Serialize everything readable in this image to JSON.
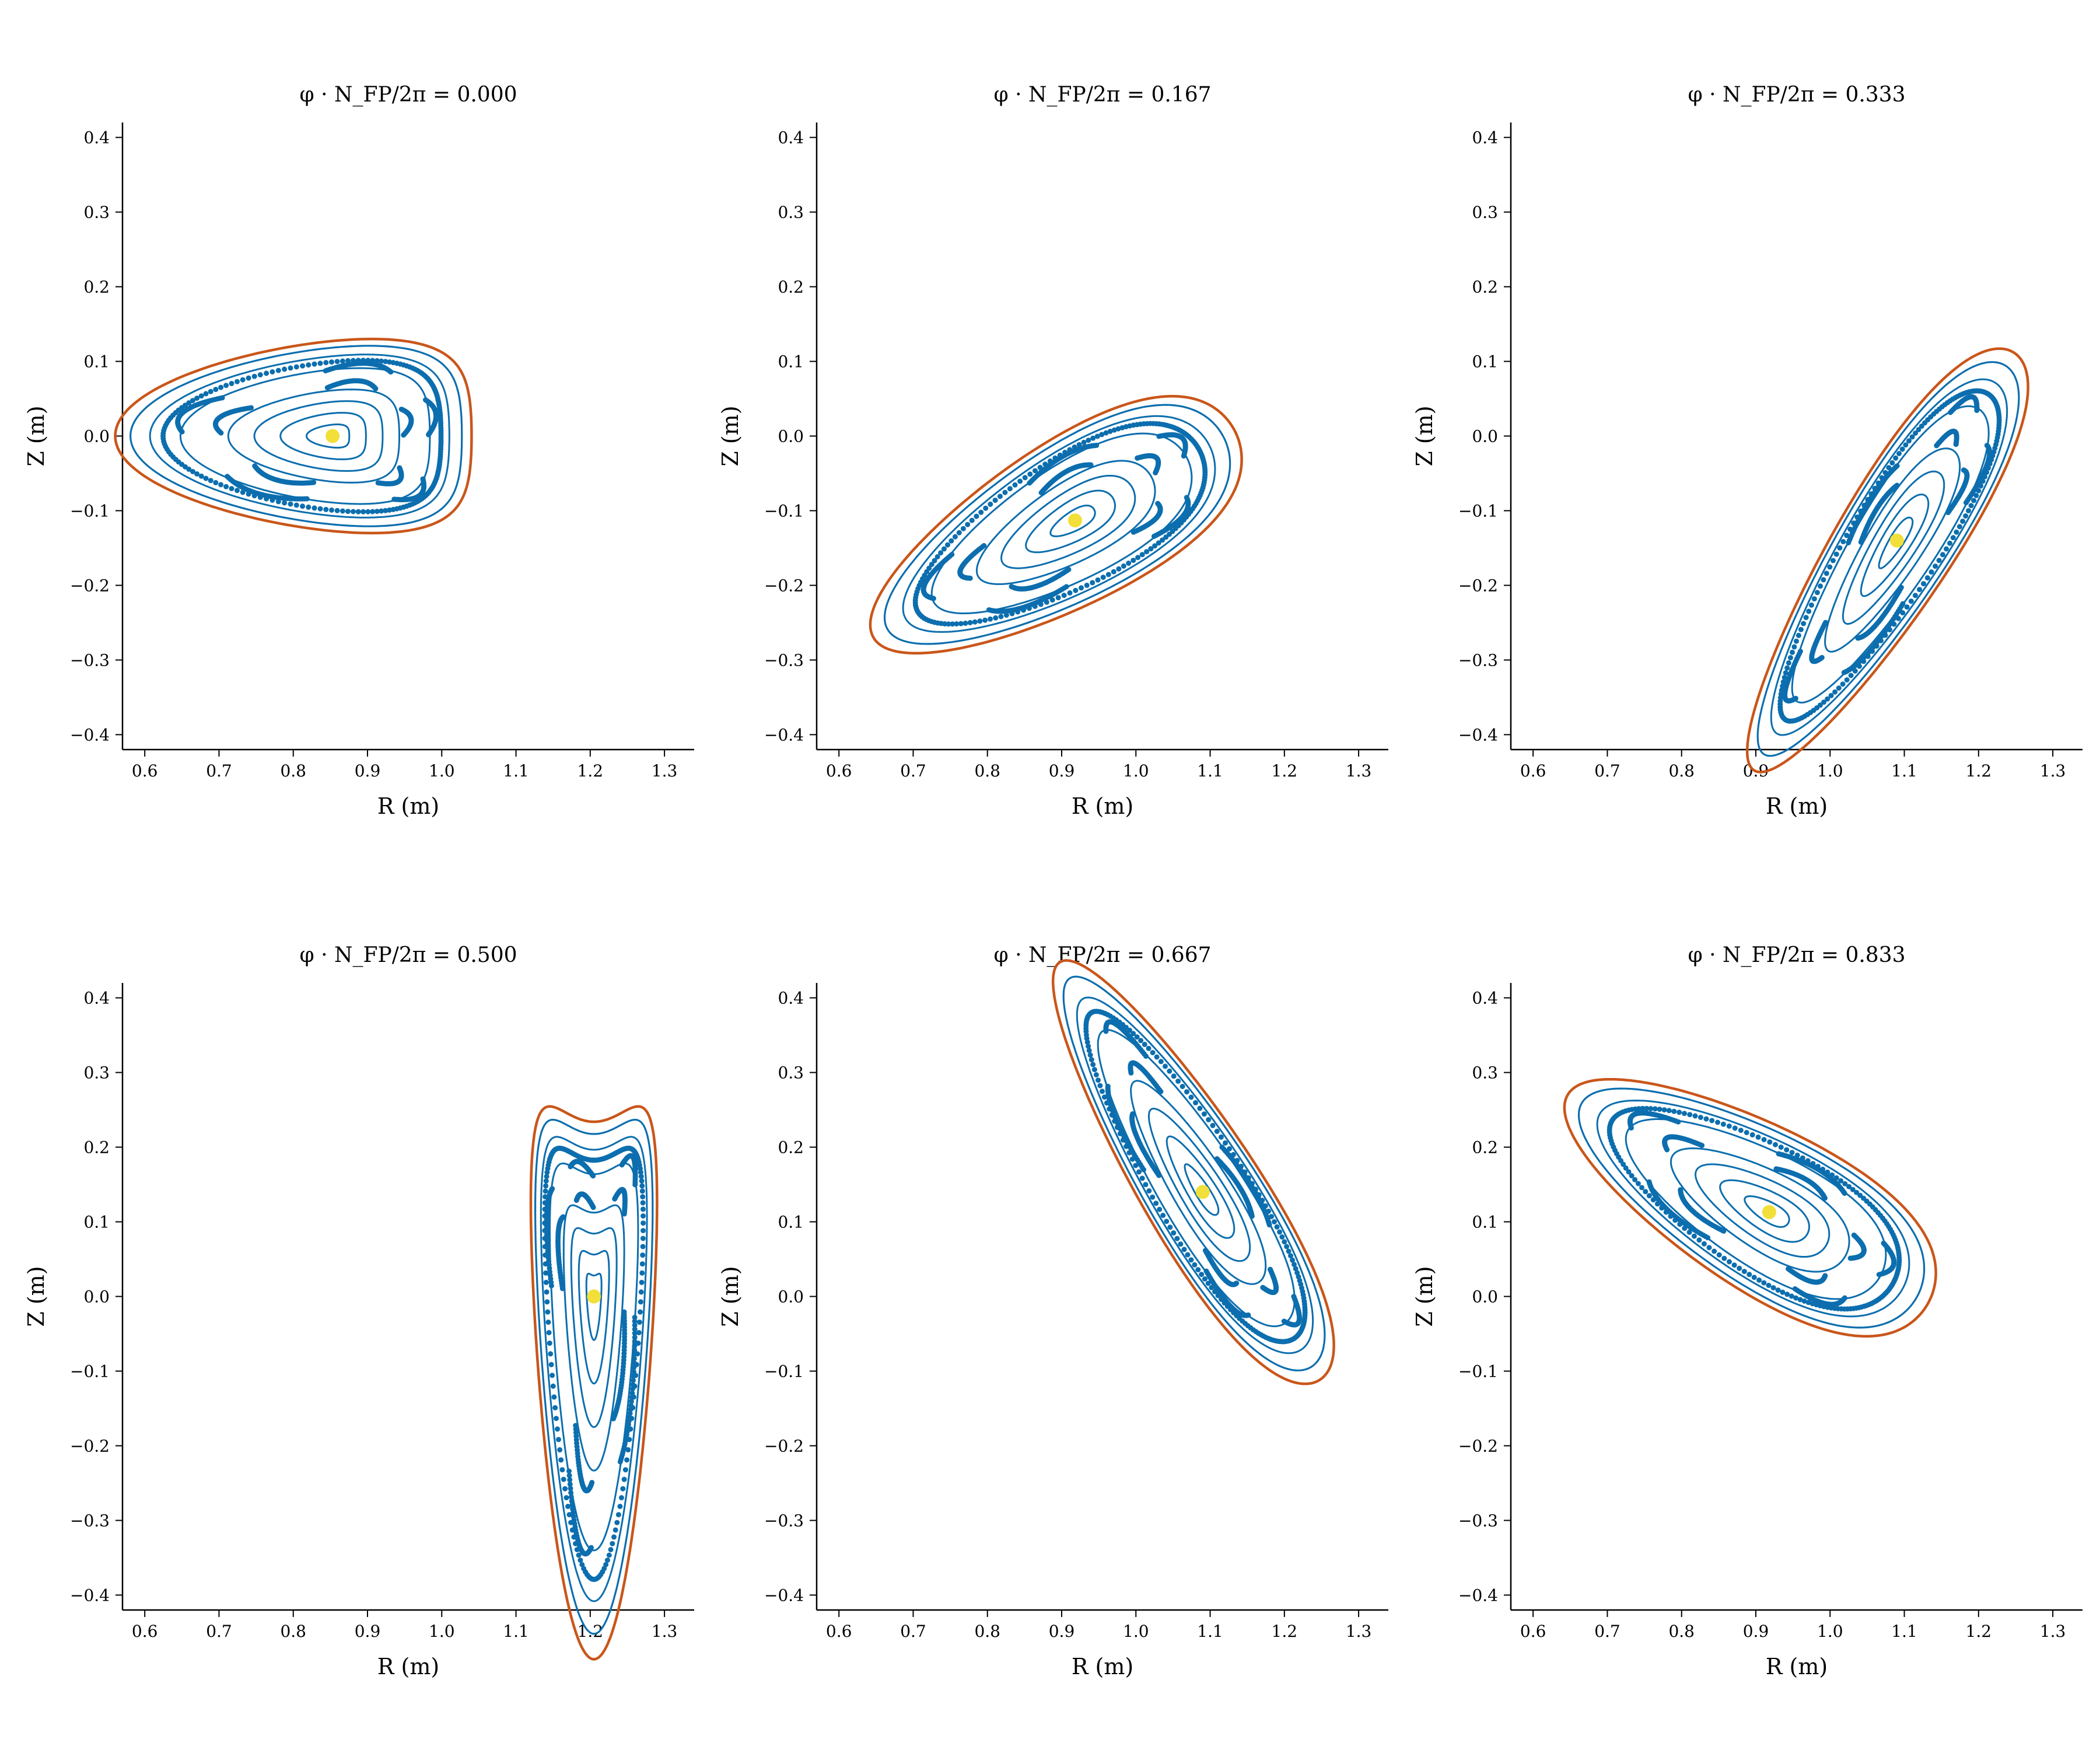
{
  "colors": {
    "boundary": "#c9561a",
    "surface": "#0c6eae",
    "axis": "#f2df3a"
  },
  "chart_data": [
    {
      "type": "line",
      "title": "φ · N_FP/2π = 0.000",
      "xlabel": "R (m)",
      "ylabel": "Z (m)",
      "xlim": [
        0.57,
        1.34
      ],
      "ylim": [
        -0.42,
        0.42
      ],
      "xticks": [
        "0.6",
        "0.7",
        "0.8",
        "0.9",
        "1.0",
        "1.1",
        "1.2",
        "1.3"
      ],
      "yticks": [
        "−0.4",
        "−0.3",
        "−0.2",
        "−0.1",
        "0.0",
        "0.1",
        "0.2",
        "0.3",
        "0.4"
      ],
      "axis": [
        0.853,
        0.0
      ],
      "boundary": {
        "a": 0.24,
        "b": 0.13,
        "tilt": 0,
        "tri": 0.22
      },
      "island_count": 5,
      "island_ri": 0.6
    },
    {
      "type": "line",
      "title": "φ · N_FP/2π = 0.167",
      "xlabel": "R (m)",
      "ylabel": "Z (m)",
      "xlim": [
        0.57,
        1.34
      ],
      "ylim": [
        -0.42,
        0.42
      ],
      "xticks": [
        "0.6",
        "0.7",
        "0.8",
        "0.9",
        "1.0",
        "1.1",
        "1.2",
        "1.3"
      ],
      "yticks": [
        "−0.4",
        "−0.3",
        "−0.2",
        "−0.1",
        "0.0",
        "0.1",
        "0.2",
        "0.3",
        "0.4"
      ],
      "axis": [
        0.918,
        -0.113
      ],
      "boundary": {
        "a": 0.28,
        "b": 0.11,
        "tilt": 30,
        "tri": 0.12
      },
      "island_count": 5,
      "island_ri": 0.6
    },
    {
      "type": "line",
      "title": "φ · N_FP/2π = 0.333",
      "xlabel": "R (m)",
      "ylabel": "Z (m)",
      "xlim": [
        0.57,
        1.34
      ],
      "ylim": [
        -0.42,
        0.42
      ],
      "xticks": [
        "0.6",
        "0.7",
        "0.8",
        "0.9",
        "1.0",
        "1.1",
        "1.2",
        "1.3"
      ],
      "yticks": [
        "−0.4",
        "−0.3",
        "−0.2",
        "−0.1",
        "0.0",
        "0.1",
        "0.2",
        "0.3",
        "0.4"
      ],
      "axis": [
        1.09,
        -0.14
      ],
      "boundary": {
        "a": 0.33,
        "b": 0.08,
        "tilt": 58,
        "tri": 0.1
      },
      "island_count": 5,
      "island_ri": 0.6
    },
    {
      "type": "line",
      "title": "φ · N_FP/2π = 0.500",
      "xlabel": "R (m)",
      "ylabel": "Z (m)",
      "xlim": [
        0.57,
        1.34
      ],
      "ylim": [
        -0.42,
        0.42
      ],
      "xticks": [
        "0.6",
        "0.7",
        "0.8",
        "0.9",
        "1.0",
        "1.1",
        "1.2",
        "1.3"
      ],
      "yticks": [
        "−0.4",
        "−0.3",
        "−0.2",
        "−0.1",
        "0.0",
        "0.1",
        "0.2",
        "0.3",
        "0.4"
      ],
      "axis": [
        1.205,
        0.0
      ],
      "boundary": {
        "a": 0.36,
        "b": 0.085,
        "tilt": 90,
        "tri": 0.35
      },
      "island_count": 5,
      "island_ri": 0.6
    },
    {
      "type": "line",
      "title": "φ · N_FP/2π = 0.667",
      "xlabel": "R (m)",
      "ylabel": "Z (m)",
      "xlim": [
        0.57,
        1.34
      ],
      "ylim": [
        -0.42,
        0.42
      ],
      "xticks": [
        "0.6",
        "0.7",
        "0.8",
        "0.9",
        "1.0",
        "1.1",
        "1.2",
        "1.3"
      ],
      "yticks": [
        "−0.4",
        "−0.3",
        "−0.2",
        "−0.1",
        "0.0",
        "0.1",
        "0.2",
        "0.3",
        "0.4"
      ],
      "axis": [
        1.09,
        0.14
      ],
      "boundary": {
        "a": 0.33,
        "b": 0.08,
        "tilt": -58,
        "tri": 0.1
      },
      "island_count": 5,
      "island_ri": 0.6
    },
    {
      "type": "line",
      "title": "φ · N_FP/2π = 0.833",
      "xlabel": "R (m)",
      "ylabel": "Z (m)",
      "xlim": [
        0.57,
        1.34
      ],
      "ylim": [
        -0.42,
        0.42
      ],
      "xticks": [
        "0.6",
        "0.7",
        "0.8",
        "0.9",
        "1.0",
        "1.1",
        "1.2",
        "1.3"
      ],
      "yticks": [
        "−0.4",
        "−0.3",
        "−0.2",
        "−0.1",
        "0.0",
        "0.1",
        "0.2",
        "0.3",
        "0.4"
      ],
      "axis": [
        0.918,
        0.113
      ],
      "boundary": {
        "a": 0.28,
        "b": 0.11,
        "tilt": -30,
        "tri": 0.12
      },
      "island_count": 5,
      "island_ri": 0.6
    }
  ]
}
